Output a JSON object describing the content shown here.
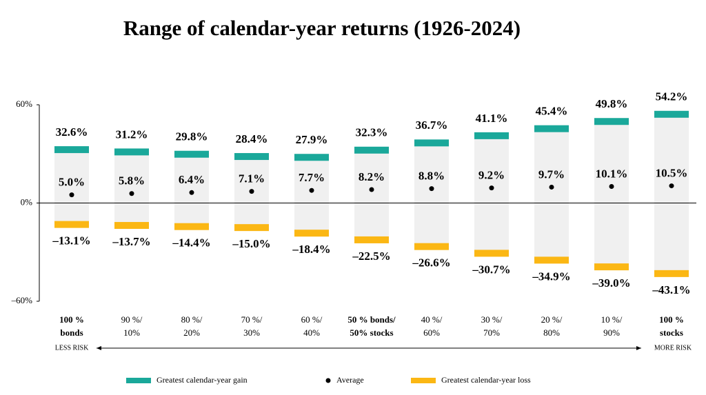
{
  "chart_data": {
    "type": "range",
    "title": "Range of calendar-year returns (1926-2024)",
    "categories": [
      [
        "100 %",
        "bonds"
      ],
      [
        "90 %/",
        "10%"
      ],
      [
        "80 %/",
        "20%"
      ],
      [
        "70 %/",
        "30%"
      ],
      [
        "60 %/",
        "40%"
      ],
      [
        "50 % bonds/",
        "50% stocks"
      ],
      [
        "40 %/",
        "60%"
      ],
      [
        "30 %/",
        "70%"
      ],
      [
        "20 %/",
        "80%"
      ],
      [
        "10 %/",
        "90%"
      ],
      [
        "100 %",
        "stocks"
      ]
    ],
    "emphasized_categories": [
      0,
      5,
      10
    ],
    "series": [
      {
        "name": "Greatest calendar-year gain",
        "color": "#1aa89a",
        "values": [
          32.6,
          31.2,
          29.8,
          28.4,
          27.9,
          32.3,
          36.7,
          41.1,
          45.4,
          49.8,
          54.2
        ],
        "value_labels": [
          "32.6%",
          "31.2%",
          "29.8%",
          "28.4%",
          "27.9%",
          "32.3%",
          "36.7%",
          "41.1%",
          "45.4%",
          "49.8%",
          "54.2%"
        ]
      },
      {
        "name": "Average",
        "color": "#000000",
        "values": [
          5.0,
          5.8,
          6.4,
          7.1,
          7.7,
          8.2,
          8.8,
          9.2,
          9.7,
          10.1,
          10.5
        ],
        "value_labels": [
          "5.0%",
          "5.8%",
          "6.4%",
          "7.1%",
          "7.7%",
          "8.2%",
          "8.8%",
          "9.2%",
          "9.7%",
          "10.1%",
          "10.5%"
        ]
      },
      {
        "name": "Greatest calendar-year loss",
        "color": "#fbb714",
        "values": [
          -13.1,
          -13.7,
          -14.4,
          -15.0,
          -18.4,
          -22.5,
          -26.6,
          -30.7,
          -34.9,
          -39.0,
          -43.1
        ],
        "value_labels": [
          "–13.1%",
          "–13.7%",
          "–14.4%",
          "–15.0%",
          "–18.4%",
          "–22.5%",
          "–26.6%",
          "–30.7%",
          "–34.9%",
          "–39.0%",
          "–43.1%"
        ]
      }
    ],
    "range_color": "#f0f0f0",
    "ylim": [
      -60,
      60
    ],
    "yticks": [
      {
        "value": 60,
        "label": "60%"
      },
      {
        "value": 0,
        "label": "0%"
      },
      {
        "value": -60,
        "label": "–60%"
      }
    ],
    "annotations": [
      "LESS RISK",
      "MORE RISK"
    ]
  }
}
